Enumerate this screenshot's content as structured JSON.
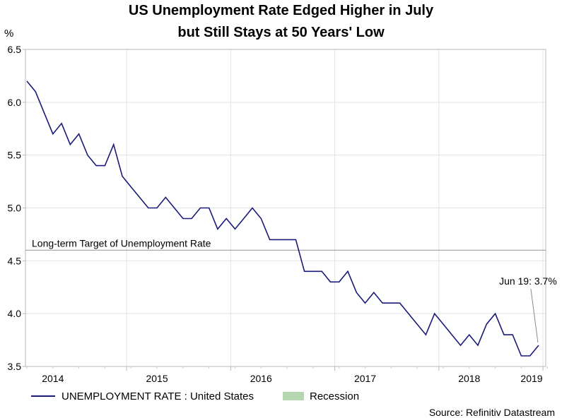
{
  "chart_data": {
    "type": "line",
    "title_lines": [
      "US Unemployment Rate Edged Higher in July",
      "but Still Stays at 50 Years' Low"
    ],
    "ylabel": "%",
    "ylim": [
      3.5,
      6.5
    ],
    "yticks": [
      "3.5",
      "4.0",
      "4.5",
      "5.0",
      "5.5",
      "6.0",
      "6.5"
    ],
    "x_year_labels": [
      "2014",
      "2015",
      "2016",
      "2017",
      "2018",
      "2019"
    ],
    "series": [
      {
        "name": "UNEMPLOYMENT RATE : United States",
        "color": "#1a1a7a",
        "start": "2014-01",
        "values": [
          6.2,
          6.1,
          5.9,
          5.7,
          5.8,
          5.6,
          5.7,
          5.5,
          5.4,
          5.4,
          5.6,
          5.3,
          5.2,
          5.1,
          5.0,
          5.0,
          5.1,
          5.0,
          4.9,
          4.9,
          5.0,
          5.0,
          4.8,
          4.9,
          4.8,
          4.9,
          5.0,
          4.9,
          4.7,
          4.7,
          4.7,
          4.7,
          4.4,
          4.4,
          4.4,
          4.3,
          4.3,
          4.4,
          4.2,
          4.1,
          4.2,
          4.1,
          4.1,
          4.1,
          4.0,
          3.9,
          3.8,
          4.0,
          3.9,
          3.8,
          3.7,
          3.8,
          3.7,
          3.9,
          4.0,
          3.8,
          3.8,
          3.6,
          3.6,
          3.7
        ]
      }
    ],
    "reference_line": {
      "value": 4.6,
      "label": "Long-term Target of Unemployment Rate"
    },
    "annotation": {
      "text": "Jun 19: 3.7%",
      "value": 3.7
    },
    "legend": [
      {
        "label": "UNEMPLOYMENT RATE : United States",
        "kind": "line",
        "color": "#1a1a7a"
      },
      {
        "label": "Recession",
        "kind": "box",
        "color": "#b5d6b0"
      }
    ],
    "legend_position": "bottom",
    "source": "Source: Refinitiv Datastream"
  }
}
